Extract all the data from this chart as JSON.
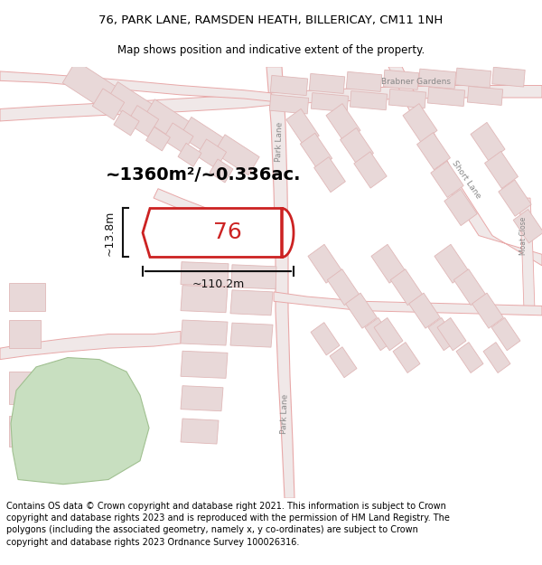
{
  "title_line1": "76, PARK LANE, RAMSDEN HEATH, BILLERICAY, CM11 1NH",
  "title_line2": "Map shows position and indicative extent of the property.",
  "footer_text": "Contains OS data © Crown copyright and database right 2021. This information is subject to Crown copyright and database rights 2023 and is reproduced with the permission of HM Land Registry. The polygons (including the associated geometry, namely x, y co-ordinates) are subject to Crown copyright and database rights 2023 Ordnance Survey 100026316.",
  "area_label": "~1360m²/~0.336ac.",
  "plot_number": "76",
  "width_label": "~110.2m",
  "height_label": "~13.8m",
  "map_bg": "#f9f7f7",
  "road_color": "#e8a8a8",
  "road_fill": "#f0e8e8",
  "building_color": "#e0b8b8",
  "building_fill": "#e8d8d8",
  "plot_color": "#cc2222",
  "green_fill": "#c8dfc0",
  "green_edge": "#c0d0b0",
  "label_color": "#888888",
  "dim_color": "#111111",
  "title_fontsize": 9.5,
  "subtitle_fontsize": 8.5,
  "footer_fontsize": 7.0,
  "road_label_size": 6.5,
  "dim_label_size": 9.0,
  "area_label_size": 14.0,
  "plot_num_size": 18.0
}
